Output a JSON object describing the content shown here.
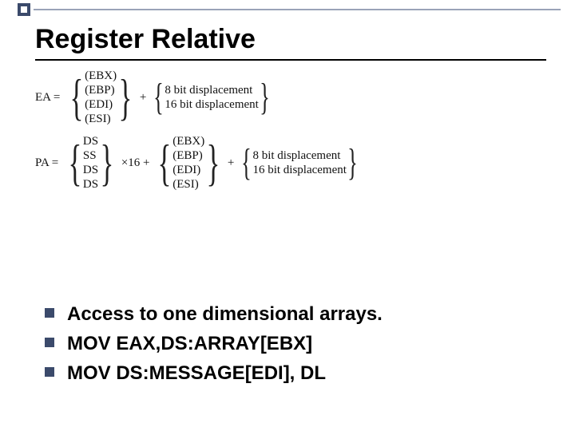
{
  "title": "Register Relative",
  "ea": {
    "label": "EA =",
    "registers": [
      "(EBX)",
      "(EBP)",
      "(EDI)",
      "(ESI)"
    ],
    "disp": [
      "8 bit displacement",
      "16 bit displacement"
    ]
  },
  "pa": {
    "label": "PA =",
    "segs": [
      "DS",
      "SS",
      "DS",
      "DS"
    ],
    "mult": "×16 +",
    "registers": [
      "(EBX)",
      "(EBP)",
      "(EDI)",
      "(ESI)"
    ],
    "disp": [
      "8 bit displacement",
      "16 bit displacement"
    ]
  },
  "bullets": [
    "Access to one dimensional arrays.",
    "MOV EAX,DS:ARRAY[EBX]",
    "MOV DS:MESSAGE[EDI], DL"
  ],
  "colors": {
    "accent": "#3b4a6b",
    "line": "#9aa3b8"
  }
}
